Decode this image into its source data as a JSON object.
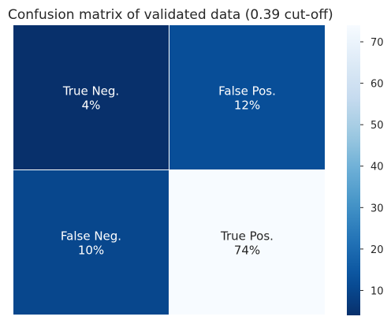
{
  "chart_data": {
    "type": "heatmap",
    "title": "Confusion matrix of validated data (0.39 cut-off)",
    "rows": [
      [
        {
          "label": "True Neg.",
          "percent_text": "4%",
          "value": 4
        },
        {
          "label": "False Pos.",
          "percent_text": "12%",
          "value": 12
        }
      ],
      [
        {
          "label": "False Neg.",
          "percent_text": "10%",
          "value": 10
        },
        {
          "label": "True Pos.",
          "percent_text": "74%",
          "value": 74
        }
      ]
    ],
    "colorbar": {
      "colormap": "Blues",
      "reversed": true,
      "vmin": 4,
      "vmax": 74,
      "ticks": [
        10,
        20,
        30,
        40,
        50,
        60,
        70
      ],
      "tick_labels": [
        "10",
        "20",
        "30",
        "40",
        "50",
        "60",
        "70"
      ]
    },
    "colors": {
      "darkest": "#08306b",
      "lightest": "#f7fbff",
      "dark_text": "#262626",
      "light_text": "#ffffff"
    }
  }
}
